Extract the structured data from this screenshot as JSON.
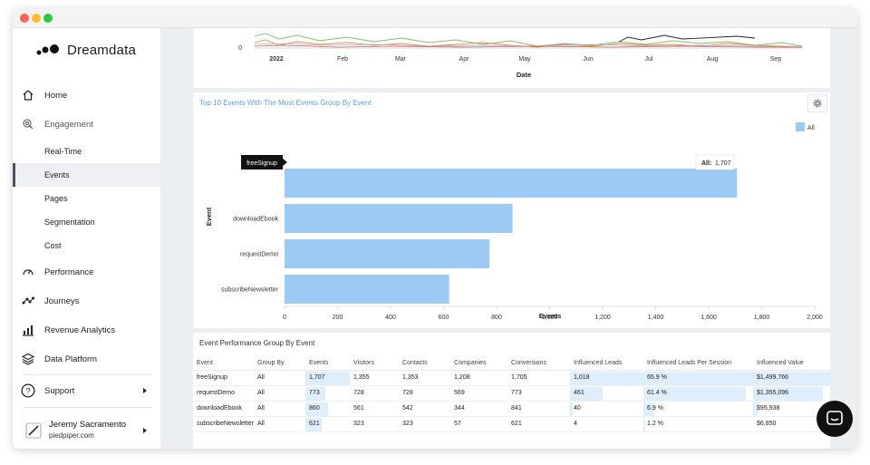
{
  "app": {
    "name": "Dreamdata"
  },
  "sidebar": {
    "items": [
      {
        "label": "Home",
        "icon": "home-icon"
      },
      {
        "label": "Engagement",
        "icon": "engagement-icon"
      },
      {
        "label": "Performance",
        "icon": "performance-icon"
      },
      {
        "label": "Journeys",
        "icon": "journeys-icon"
      },
      {
        "label": "Revenue Analytics",
        "icon": "revenue-analytics-icon"
      },
      {
        "label": "Data Platform",
        "icon": "data-platform-icon"
      },
      {
        "label": "Support",
        "icon": "support-icon"
      }
    ],
    "engagement_sub": [
      "Real-Time",
      "Events",
      "Pages",
      "Segmentation",
      "Cost"
    ],
    "active_sub": "Events",
    "user": {
      "name": "Jeremy Sacramento",
      "org": "piedpiper.com"
    }
  },
  "top_chart": {
    "y_tick": "0",
    "x_labels": [
      "2022",
      "Feb",
      "Mar",
      "Apr",
      "May",
      "Jun",
      "Jul",
      "Aug",
      "Sep"
    ],
    "xlabel": "Date"
  },
  "events_chart": {
    "title": "Top 10 Events With The Most Events Group By Event",
    "legend": "All",
    "tooltip_label": "freeSignup",
    "tooltip_value_label": "All:",
    "tooltip_value": "1,707",
    "ylabel": "Event",
    "xlabel": "Events",
    "colors": {
      "bar": "#9ccaf5",
      "title": "#5aa4e8"
    }
  },
  "chart_data": {
    "type": "bar",
    "orientation": "horizontal",
    "title": "Top 10 Events With The Most Events Group By Event",
    "categories": [
      "freeSignup",
      "downloadEbook",
      "requestDemo",
      "subscribeNewsletter"
    ],
    "series": [
      {
        "name": "All",
        "values": [
          1707,
          860,
          773,
          621
        ]
      }
    ],
    "xlabel": "Events",
    "ylabel": "Event",
    "xlim": [
      0,
      2000
    ],
    "xticks": [
      "0",
      "200",
      "400",
      "600",
      "800",
      "1,000",
      "1,200",
      "1,400",
      "1,600",
      "1,800",
      "2,000"
    ],
    "legend_position": "top-right",
    "grid": false
  },
  "performance_table": {
    "title": "Event Performance Group By Event",
    "columns": [
      "Event",
      "Group By",
      "Events",
      "Visitors",
      "Contacts",
      "Companies",
      "Conversions",
      "Influenced Leads",
      "Influenced Leads Per Session",
      "Influenced Value"
    ],
    "rows": [
      [
        "freeSignup",
        "All",
        "1,707",
        "1,355",
        "1,353",
        "1,208",
        "1,705",
        "1,018",
        "65.9 %",
        "$1,499,766"
      ],
      [
        "requestDemo",
        "All",
        "773",
        "728",
        "728",
        "569",
        "773",
        "461",
        "61.4 %",
        "$1,355,096"
      ],
      [
        "downloadEbook",
        "All",
        "860",
        "561",
        "542",
        "344",
        "841",
        "40",
        "6.9 %",
        "$95,938"
      ],
      [
        "subscribeNewsletter",
        "All",
        "621",
        "323",
        "323",
        "57",
        "621",
        "4",
        "1.2 %",
        "$6,850"
      ]
    ],
    "bar_fractions": [
      {
        "events": 1.0,
        "leads": 1.0,
        "lps": 1.0,
        "value": 1.0
      },
      {
        "events": 0.45,
        "leads": 0.45,
        "lps": 0.93,
        "value": 0.9
      },
      {
        "events": 0.5,
        "leads": 0.04,
        "lps": 0.1,
        "value": 0.06
      },
      {
        "events": 0.36,
        "leads": 0.0,
        "lps": 0.02,
        "value": 0.0
      }
    ]
  }
}
